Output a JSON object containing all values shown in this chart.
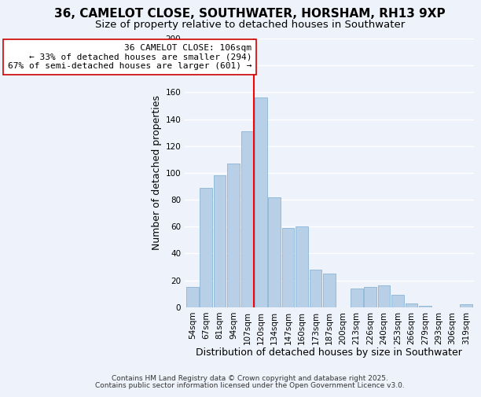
{
  "title": "36, CAMELOT CLOSE, SOUTHWATER, HORSHAM, RH13 9XP",
  "subtitle": "Size of property relative to detached houses in Southwater",
  "xlabel": "Distribution of detached houses by size in Southwater",
  "ylabel": "Number of detached properties",
  "bar_labels": [
    "54sqm",
    "67sqm",
    "81sqm",
    "94sqm",
    "107sqm",
    "120sqm",
    "134sqm",
    "147sqm",
    "160sqm",
    "173sqm",
    "187sqm",
    "200sqm",
    "213sqm",
    "226sqm",
    "240sqm",
    "253sqm",
    "266sqm",
    "279sqm",
    "293sqm",
    "306sqm",
    "319sqm"
  ],
  "bar_values": [
    15,
    89,
    98,
    107,
    131,
    156,
    82,
    59,
    60,
    28,
    25,
    0,
    14,
    15,
    16,
    9,
    3,
    1,
    0,
    0,
    2
  ],
  "bar_color": "#b8cfe8",
  "bar_edge_color": "#8ab4d8",
  "vline_x_index": 4,
  "vline_color": "red",
  "annotation_title": "36 CAMELOT CLOSE: 106sqm",
  "annotation_line1": "← 33% of detached houses are smaller (294)",
  "annotation_line2": "67% of semi-detached houses are larger (601) →",
  "annotation_box_color": "white",
  "annotation_box_edge": "#cc0000",
  "ylim": [
    0,
    200
  ],
  "yticks": [
    0,
    20,
    40,
    60,
    80,
    100,
    120,
    140,
    160,
    180,
    200
  ],
  "footer1": "Contains HM Land Registry data © Crown copyright and database right 2025.",
  "footer2": "Contains public sector information licensed under the Open Government Licence v3.0.",
  "bg_color": "#eef2fa",
  "grid_color": "#ffffff",
  "title_fontsize": 11,
  "subtitle_fontsize": 9.5,
  "axis_label_fontsize": 9,
  "tick_fontsize": 7.5,
  "annotation_fontsize": 8,
  "footer_fontsize": 6.5
}
